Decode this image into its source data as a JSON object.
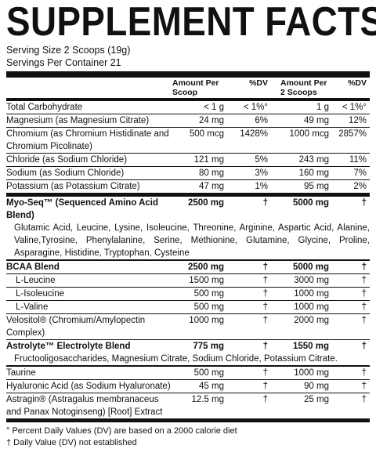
{
  "header": {
    "title": "SUPPLEMENT FACTS",
    "serving_size": "Serving Size 2 Scoops (19g)",
    "servings_per_container": "Servings Per Container 21"
  },
  "table": {
    "columns": [
      "Amount Per Scoop",
      "%DV",
      "Amount Per 2 Scoops",
      "%DV"
    ],
    "sections": [
      [
        {
          "row": [
            "Total Carbohydrate",
            "< 1 g",
            "< 1%°",
            "1 g",
            "< 1%°"
          ]
        },
        {
          "row": [
            "Magnesium (as Magnesium Citrate)",
            "24 mg",
            "6%",
            "49 mg",
            "12%"
          ]
        },
        {
          "row": [
            "Chromium (as Chromium Histidinate and Chromium Picolinate)",
            "500 mcg",
            "1428%",
            "1000 mcg",
            "2857%"
          ]
        },
        {
          "row": [
            "Chloride (as Sodium Chloride)",
            "121 mg",
            "5%",
            "243 mg",
            "11%"
          ]
        },
        {
          "row": [
            "Sodium (as Sodium Chloride)",
            "80 mg",
            "3%",
            "160 mg",
            "7%"
          ]
        },
        {
          "row": [
            "Potassium (as Potassium Citrate)",
            "47 mg",
            "1%",
            "95 mg",
            "2%"
          ]
        }
      ],
      [
        {
          "blend": [
            "Myo-Seq™ (Sequenced Amino Acid Blend)",
            "2500 mg",
            "†",
            "5000 mg",
            "†"
          ],
          "ingredients": "Glutamic Acid, Leucine, Lysine, Isoleucine, Threonine, Arginine, Aspartic Acid, Alanine, Valine,Tyrosine, Phenylalanine, Serine, Methionine, Glutamine, Glycine, Proline, Asparagine, Histidine, Tryptophan, Cysteine"
        }
      ],
      [
        {
          "blend": [
            "BCAA Blend",
            "2500 mg",
            "†",
            "5000 mg",
            "†"
          ],
          "components": [
            [
              "L-Leucine",
              "1500 mg",
              "†",
              "3000 mg",
              "†"
            ],
            [
              "L-Isoleucine",
              "500 mg",
              "†",
              "1000 mg",
              "†"
            ],
            [
              "L-Valine",
              "500 mg",
              "†",
              "1000 mg",
              "†"
            ]
          ]
        },
        {
          "row": [
            "Velositol® (Chromium/Amylopectin Complex)",
            "1000 mg",
            "†",
            "2000 mg",
            "†"
          ]
        },
        {
          "blend": [
            "Astrolyte™ Electrolyte Blend",
            "775 mg",
            "†",
            "1550 mg",
            "†"
          ],
          "ingredients": "Fructooligosaccharides, Magnesium Citrate, Sodium Chloride, Potassium Citrate."
        }
      ],
      [
        {
          "row": [
            "Taurine",
            "500 mg",
            "†",
            "1000 mg",
            "†"
          ]
        },
        {
          "row": [
            "Hyaluronic Acid (as Sodium Hyaluronate)",
            "45 mg",
            "†",
            "90 mg",
            "†"
          ]
        },
        {
          "row": [
            "Astragin® (Astragalus membranaceus and Panax Notoginseng) [Root] Extract",
            "12.5 mg",
            "†",
            "25 mg",
            "†"
          ]
        }
      ]
    ]
  },
  "footer": [
    "° Percent Daily Values (DV) are based on a 2000 calorie diet",
    "† Daily Value (DV) not established"
  ]
}
